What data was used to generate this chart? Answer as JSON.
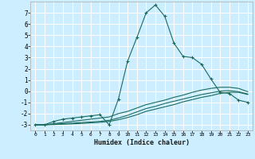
{
  "xlabel": "Humidex (Indice chaleur)",
  "bg_color": "#cceeff",
  "grid_color": "#ffffff",
  "line_color": "#1a6b5e",
  "xlim": [
    -0.5,
    23.5
  ],
  "ylim": [
    -3.5,
    8.0
  ],
  "yticks": [
    -3,
    -2,
    -1,
    0,
    1,
    2,
    3,
    4,
    5,
    6,
    7
  ],
  "xticks": [
    0,
    1,
    2,
    3,
    4,
    5,
    6,
    7,
    8,
    9,
    10,
    11,
    12,
    13,
    14,
    15,
    16,
    17,
    18,
    19,
    20,
    21,
    22,
    23
  ],
  "series": [
    {
      "x": [
        0,
        1,
        2,
        3,
        4,
        5,
        6,
        7,
        8,
        9,
        10,
        11,
        12,
        13,
        14,
        15,
        16,
        17,
        18,
        19,
        20,
        21,
        22,
        23
      ],
      "y": [
        -3.0,
        -3.0,
        -2.7,
        -2.5,
        -2.4,
        -2.3,
        -2.2,
        -2.1,
        -3.0,
        -0.7,
        2.7,
        4.8,
        7.0,
        7.7,
        6.7,
        4.3,
        3.1,
        3.0,
        2.4,
        1.1,
        -0.1,
        -0.2,
        -0.8,
        -1.0
      ],
      "marker": true
    },
    {
      "x": [
        0,
        1,
        2,
        3,
        4,
        5,
        6,
        7,
        8,
        9,
        10,
        11,
        12,
        13,
        14,
        15,
        16,
        17,
        18,
        19,
        20,
        21,
        22,
        23
      ],
      "y": [
        -3.0,
        -3.0,
        -2.9,
        -2.8,
        -2.7,
        -2.6,
        -2.5,
        -2.4,
        -2.3,
        -2.0,
        -1.8,
        -1.5,
        -1.2,
        -1.0,
        -0.8,
        -0.55,
        -0.35,
        -0.1,
        0.1,
        0.25,
        0.35,
        0.35,
        0.25,
        -0.05
      ],
      "marker": false
    },
    {
      "x": [
        0,
        1,
        2,
        3,
        4,
        5,
        6,
        7,
        8,
        9,
        10,
        11,
        12,
        13,
        14,
        15,
        16,
        17,
        18,
        19,
        20,
        21,
        22,
        23
      ],
      "y": [
        -3.0,
        -3.0,
        -2.95,
        -2.9,
        -2.85,
        -2.8,
        -2.75,
        -2.7,
        -2.6,
        -2.4,
        -2.15,
        -1.85,
        -1.55,
        -1.35,
        -1.1,
        -0.9,
        -0.7,
        -0.5,
        -0.3,
        -0.15,
        0.0,
        0.05,
        -0.05,
        -0.25
      ],
      "marker": false
    },
    {
      "x": [
        0,
        1,
        2,
        3,
        4,
        5,
        6,
        7,
        8,
        9,
        10,
        11,
        12,
        13,
        14,
        15,
        16,
        17,
        18,
        19,
        20,
        21,
        22,
        23
      ],
      "y": [
        -3.0,
        -3.0,
        -2.98,
        -2.95,
        -2.92,
        -2.88,
        -2.83,
        -2.78,
        -2.7,
        -2.55,
        -2.35,
        -2.1,
        -1.8,
        -1.6,
        -1.4,
        -1.2,
        -0.95,
        -0.75,
        -0.55,
        -0.4,
        -0.2,
        -0.1,
        -0.1,
        -0.3
      ],
      "marker": false
    }
  ]
}
